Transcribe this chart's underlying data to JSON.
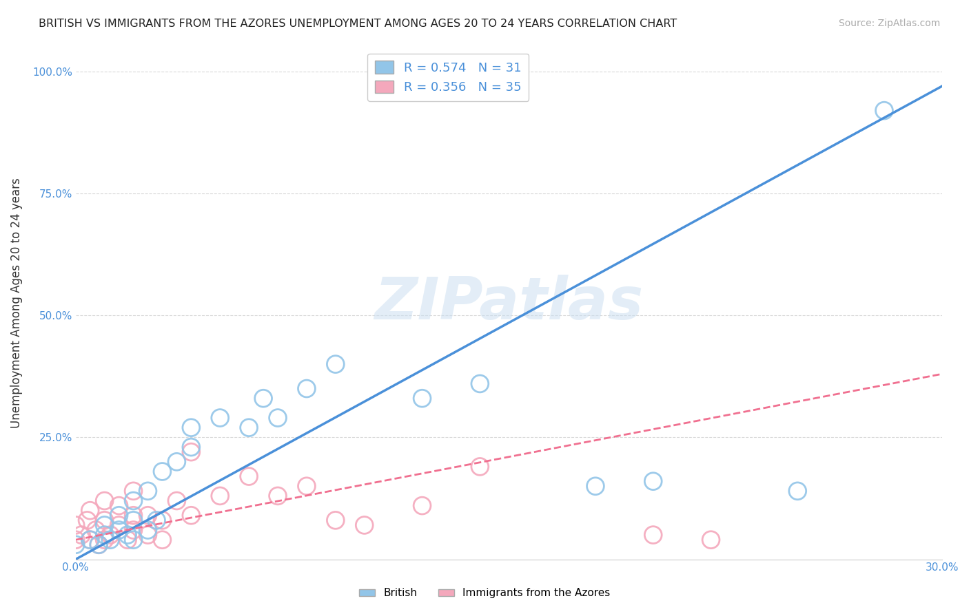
{
  "title": "BRITISH VS IMMIGRANTS FROM THE AZORES UNEMPLOYMENT AMONG AGES 20 TO 24 YEARS CORRELATION CHART",
  "source": "Source: ZipAtlas.com",
  "ylabel": "Unemployment Among Ages 20 to 24 years",
  "xlim": [
    0.0,
    0.3
  ],
  "ylim": [
    0.0,
    1.05
  ],
  "xticks": [
    0.0,
    0.05,
    0.1,
    0.15,
    0.2,
    0.25,
    0.3
  ],
  "xtick_labels": [
    "0.0%",
    "",
    "",
    "",
    "",
    "",
    "30.0%"
  ],
  "yticks": [
    0.0,
    0.25,
    0.5,
    0.75,
    1.0
  ],
  "ytick_labels": [
    "",
    "25.0%",
    "50.0%",
    "75.0%",
    "100.0%"
  ],
  "british_r": "0.574",
  "british_n": "31",
  "azores_r": "0.356",
  "azores_n": "35",
  "british_color": "#92c5e8",
  "azores_color": "#f4a8bc",
  "british_line_color": "#4a90d9",
  "azores_line_color": "#f07090",
  "watermark_text": "ZIPatlas",
  "background_color": "#ffffff",
  "grid_color": "#d8d8d8",
  "british_line_x": [
    0.0,
    0.3
  ],
  "british_line_y": [
    0.0,
    0.97
  ],
  "azores_line_x": [
    0.0,
    0.3
  ],
  "azores_line_y": [
    0.04,
    0.38
  ],
  "british_x": [
    0.0,
    0.005,
    0.008,
    0.01,
    0.01,
    0.012,
    0.015,
    0.015,
    0.018,
    0.02,
    0.02,
    0.02,
    0.025,
    0.025,
    0.028,
    0.03,
    0.035,
    0.04,
    0.04,
    0.05,
    0.06,
    0.065,
    0.07,
    0.08,
    0.09,
    0.12,
    0.14,
    0.18,
    0.2,
    0.25,
    0.28
  ],
  "british_y": [
    0.03,
    0.04,
    0.03,
    0.05,
    0.07,
    0.04,
    0.06,
    0.09,
    0.05,
    0.04,
    0.08,
    0.12,
    0.06,
    0.14,
    0.08,
    0.18,
    0.2,
    0.23,
    0.27,
    0.29,
    0.27,
    0.33,
    0.29,
    0.35,
    0.4,
    0.33,
    0.36,
    0.15,
    0.16,
    0.14,
    0.92
  ],
  "azores_x": [
    0.0,
    0.0,
    0.002,
    0.004,
    0.005,
    0.005,
    0.007,
    0.008,
    0.01,
    0.01,
    0.01,
    0.012,
    0.015,
    0.015,
    0.018,
    0.02,
    0.02,
    0.02,
    0.025,
    0.025,
    0.03,
    0.03,
    0.035,
    0.04,
    0.04,
    0.05,
    0.06,
    0.07,
    0.08,
    0.09,
    0.1,
    0.12,
    0.14,
    0.2,
    0.22
  ],
  "azores_y": [
    0.04,
    0.07,
    0.05,
    0.08,
    0.04,
    0.1,
    0.06,
    0.03,
    0.04,
    0.08,
    0.12,
    0.05,
    0.07,
    0.11,
    0.04,
    0.06,
    0.09,
    0.14,
    0.05,
    0.09,
    0.04,
    0.08,
    0.12,
    0.09,
    0.22,
    0.13,
    0.17,
    0.13,
    0.15,
    0.08,
    0.07,
    0.11,
    0.19,
    0.05,
    0.04
  ]
}
